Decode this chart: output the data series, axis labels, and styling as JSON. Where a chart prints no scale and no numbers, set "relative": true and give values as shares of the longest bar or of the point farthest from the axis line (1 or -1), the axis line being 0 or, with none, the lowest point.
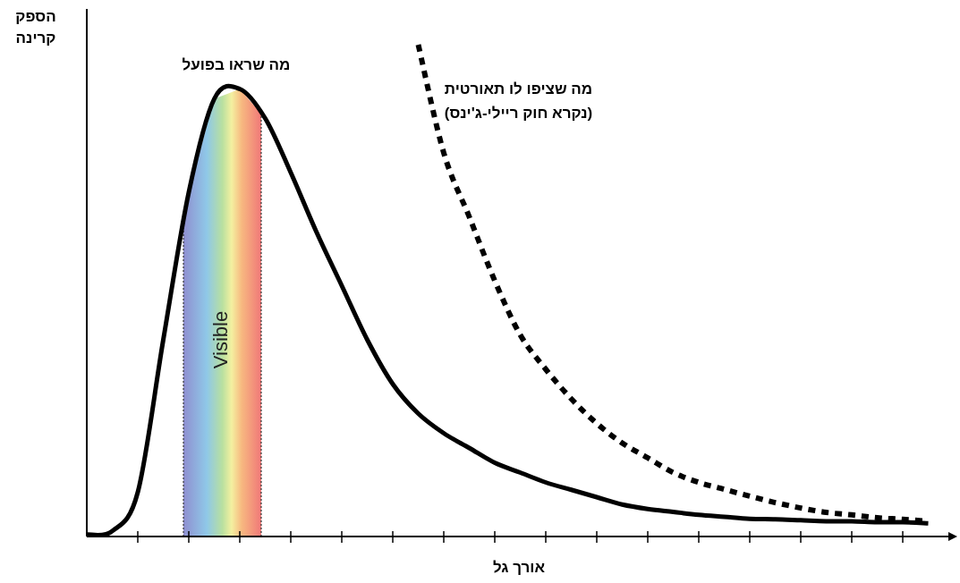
{
  "chart_data": {
    "type": "line",
    "relative": true,
    "xlabel": "אורך גל",
    "ylabel": "הספק\nקרינה",
    "categories": [
      null,
      null,
      null,
      null,
      null,
      null,
      null,
      null,
      null,
      null,
      null,
      null,
      null,
      null,
      null,
      null,
      null,
      null,
      null,
      null,
      null,
      null,
      null,
      null,
      null,
      null,
      null,
      null,
      null,
      null,
      null,
      null,
      null,
      null
    ],
    "series": [
      {
        "name": "מה שראו בפועל",
        "color": "#000000",
        "line_style": "solid",
        "values": [
          0.004,
          0.011,
          0.09,
          0.4,
          0.7,
          0.89,
          0.91,
          0.85,
          0.74,
          0.62,
          0.51,
          0.4,
          0.31,
          0.25,
          0.21,
          0.18,
          0.15,
          0.13,
          0.11,
          0.095,
          0.08,
          0.065,
          0.056,
          0.05,
          0.044,
          0.04,
          0.036,
          0.035,
          0.033,
          0.031,
          0.031,
          0.029,
          0.029,
          0.027
        ]
      },
      {
        "name": "מה שציפו לו תאורטית\n(נקרא חוק ריילי-ג'ינס)",
        "color": "#000000",
        "line_style": "dotted",
        "values": [
          null,
          null,
          null,
          null,
          null,
          null,
          null,
          null,
          null,
          null,
          null,
          null,
          null,
          1.0,
          0.78,
          0.65,
          0.52,
          0.41,
          0.34,
          0.28,
          0.23,
          0.19,
          0.16,
          0.13,
          0.11,
          0.096,
          0.082,
          0.069,
          0.058,
          0.049,
          0.044,
          0.038,
          0.035,
          0.031
        ]
      }
    ],
    "annotations": [
      "Visible"
    ]
  }
}
